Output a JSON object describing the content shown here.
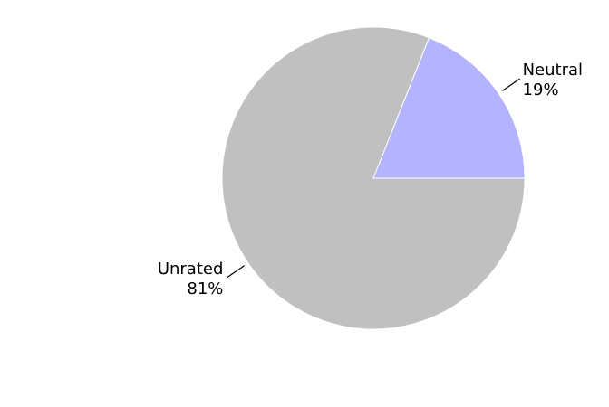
{
  "chart_data": {
    "type": "pie",
    "title": "",
    "slices": [
      {
        "label": "Neutral",
        "value": 19,
        "pct_label": "19%",
        "color": "#b3b3ff"
      },
      {
        "label": "Unrated",
        "value": 81,
        "pct_label": "81%",
        "color": "#c0c0c0"
      }
    ],
    "legend": "none"
  }
}
